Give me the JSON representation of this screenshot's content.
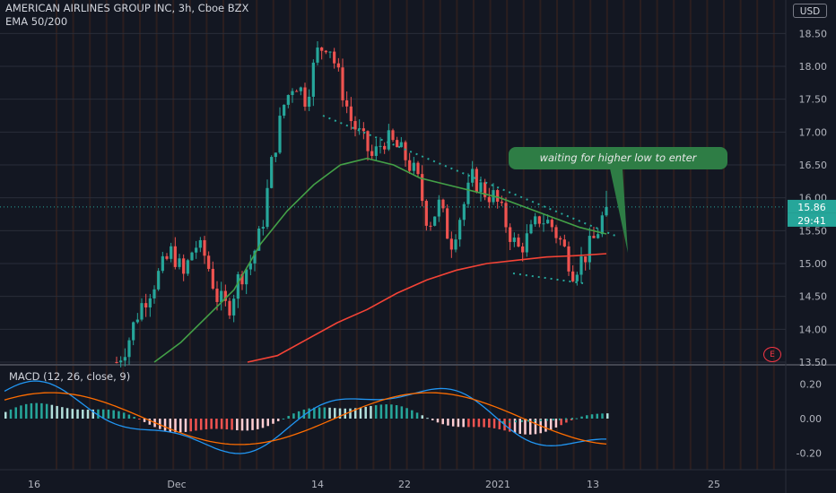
{
  "header": {
    "symbol_line": "AMERICAN AIRLINES GROUP INC, 3h, Cboe BZX",
    "indicator_line": "EMA 50/200"
  },
  "currency_button": "USD",
  "price_axis": {
    "labels": [
      "18.50",
      "18.00",
      "17.50",
      "17.00",
      "16.50",
      "16.00",
      "15.50",
      "15.00",
      "14.50",
      "14.00",
      "13.50"
    ],
    "current_price": "15.86",
    "countdown": "29:41"
  },
  "macd": {
    "title": "MACD (12, 26, close, 9)",
    "labels": [
      "0.20",
      "0.00",
      "-0.20"
    ]
  },
  "time_axis": {
    "labels": [
      "16",
      "Dec",
      "14",
      "22",
      "2021",
      "13",
      "25"
    ]
  },
  "annotation": {
    "text": "waiting for higher low to enter"
  },
  "earnings_badge": "E",
  "colors": {
    "background": "#131722",
    "up": "#26a69a",
    "down": "#ef5350",
    "ema50": "#43a047",
    "ema200": "#f44336",
    "macd_line": "#2196f3",
    "signal_line": "#ff6d00",
    "callout": "#2e7d45"
  },
  "chart_data": {
    "type": "candlestick",
    "title": "AMERICAN AIRLINES GROUP INC, 3h, Cboe BZX",
    "price_range": [
      13.5,
      18.6
    ],
    "x_ticks": [
      "16",
      "Dec",
      "14",
      "22",
      "2021",
      "13",
      "25"
    ],
    "close_path": [
      13.5,
      13.8,
      14.3,
      14.6,
      14.9,
      15.2,
      14.8,
      15.3,
      15.1,
      14.5,
      14.3,
      14.8,
      15.0,
      15.5,
      16.6,
      17.4,
      17.8,
      17.5,
      18.2,
      18.4,
      17.8,
      17.2,
      16.9,
      16.6,
      16.9,
      16.8,
      16.6,
      16.3,
      15.6,
      15.9,
      15.3,
      15.8,
      16.3,
      16.1,
      16.0,
      15.6,
      15.2,
      15.4,
      15.7,
      15.6,
      15.3,
      14.9,
      15.1,
      15.4,
      15.86
    ],
    "ema50": [
      13.5,
      13.8,
      14.2,
      14.6,
      15.3,
      15.8,
      16.2,
      16.5,
      16.6,
      16.5,
      16.3,
      16.2,
      16.1,
      16.0,
      15.85,
      15.7,
      15.55,
      15.45
    ],
    "ema200": [
      13.5,
      13.6,
      13.85,
      14.1,
      14.3,
      14.55,
      14.75,
      14.9,
      15.0,
      15.05,
      15.1,
      15.12,
      15.15
    ],
    "macd_range": [
      -0.25,
      0.25
    ],
    "current_price": 15.86
  }
}
